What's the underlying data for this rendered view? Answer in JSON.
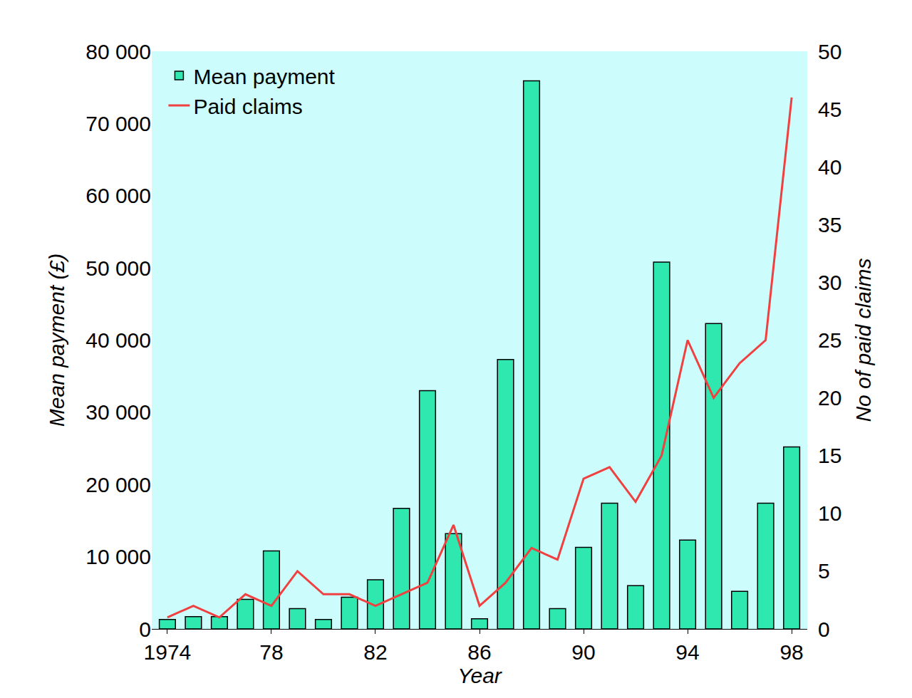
{
  "chart_data": {
    "type": "bar",
    "x_label": "Year",
    "y_label": "Mean payment (£)",
    "y2_label": "No of paid claims",
    "x": [
      1974,
      1975,
      1976,
      1977,
      1978,
      1979,
      1980,
      1981,
      1982,
      1983,
      1984,
      1985,
      1986,
      1987,
      1988,
      1989,
      1990,
      1991,
      1992,
      1993,
      1994,
      1995,
      1996,
      1997,
      1998
    ],
    "series": [
      {
        "name": "Mean payment",
        "type": "bar",
        "color": "#2ee8b0",
        "values": [
          1300,
          1700,
          1700,
          4100,
          10800,
          2800,
          1300,
          4400,
          6800,
          16700,
          33000,
          13200,
          1400,
          37300,
          75900,
          2800,
          11300,
          17400,
          6000,
          50800,
          12300,
          42300,
          5200,
          17400,
          25200
        ]
      },
      {
        "name": "Paid claims",
        "type": "line",
        "color": "#f04040",
        "axis": "y2",
        "values": [
          1,
          2,
          1,
          3,
          2,
          5,
          3,
          3,
          2,
          3,
          4,
          9,
          2,
          4,
          7,
          6,
          13,
          14,
          11,
          15,
          25,
          20,
          23,
          25,
          46
        ]
      }
    ],
    "xlim": [
      1973.4,
      1998.6
    ],
    "xticks": [
      1974,
      {
        "value": 1978,
        "label": "78"
      },
      {
        "value": 1982,
        "label": "82"
      },
      {
        "value": 1986,
        "label": "86"
      },
      {
        "value": 1990,
        "label": "90"
      },
      {
        "value": 1994,
        "label": "94"
      },
      {
        "value": 1998,
        "label": "98"
      }
    ],
    "ylim": [
      0,
      80000
    ],
    "yticks": [
      0,
      {
        "value": 10000,
        "label": "10 000"
      },
      {
        "value": 20000,
        "label": "20 000"
      },
      {
        "value": 30000,
        "label": "30 000"
      },
      {
        "value": 40000,
        "label": "40 000"
      },
      {
        "value": 50000,
        "label": "50 000"
      },
      {
        "value": 60000,
        "label": "60 000"
      },
      {
        "value": 70000,
        "label": "70 000"
      },
      {
        "value": 80000,
        "label": "80 000"
      }
    ],
    "y2lim": [
      0,
      50
    ],
    "y2ticks": [
      0,
      5,
      10,
      15,
      20,
      25,
      30,
      35,
      40,
      45,
      50
    ],
    "legend": "upper left",
    "grid": false
  }
}
